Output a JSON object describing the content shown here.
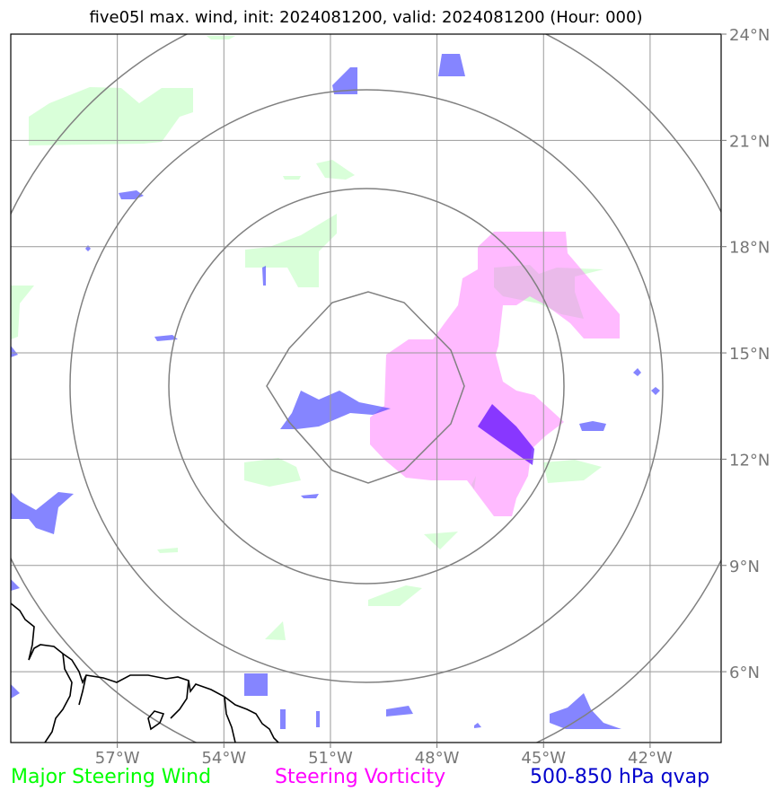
{
  "title": "five05l max. wind, init: 2024081200, valid: 2024081200 (Hour: 000)",
  "map": {
    "lon_range": [
      -60,
      -40
    ],
    "lat_range": [
      4,
      24
    ],
    "lon_ticks": [
      {
        "value": -57,
        "label": "57°W"
      },
      {
        "value": -54,
        "label": "54°W"
      },
      {
        "value": -51,
        "label": "51°W"
      },
      {
        "value": -48,
        "label": "48°W"
      },
      {
        "value": -45,
        "label": "45°W"
      },
      {
        "value": -42,
        "label": "42°W"
      }
    ],
    "lat_ticks": [
      {
        "value": 24,
        "label": "24°N"
      },
      {
        "value": 21,
        "label": "21°N"
      },
      {
        "value": 18,
        "label": "18°N"
      },
      {
        "value": 15,
        "label": "15°N"
      },
      {
        "value": 12,
        "label": "12°N"
      },
      {
        "value": 9,
        "label": "9°N"
      },
      {
        "value": 6,
        "label": "6°N"
      }
    ],
    "grid": true,
    "range_rings_center": {
      "lon": -49.2,
      "lat": 14.2
    },
    "colors": {
      "wind": "#00ff00",
      "vorticity": "#ff00ff",
      "qvap": "#0000cc",
      "grid": "#999999",
      "rings": "#808080",
      "coast": "#000000"
    }
  },
  "legend": {
    "wind": "Major Steering Wind",
    "vorticity": "Steering Vorticity",
    "qvap": "500-850 hPa qvap"
  }
}
